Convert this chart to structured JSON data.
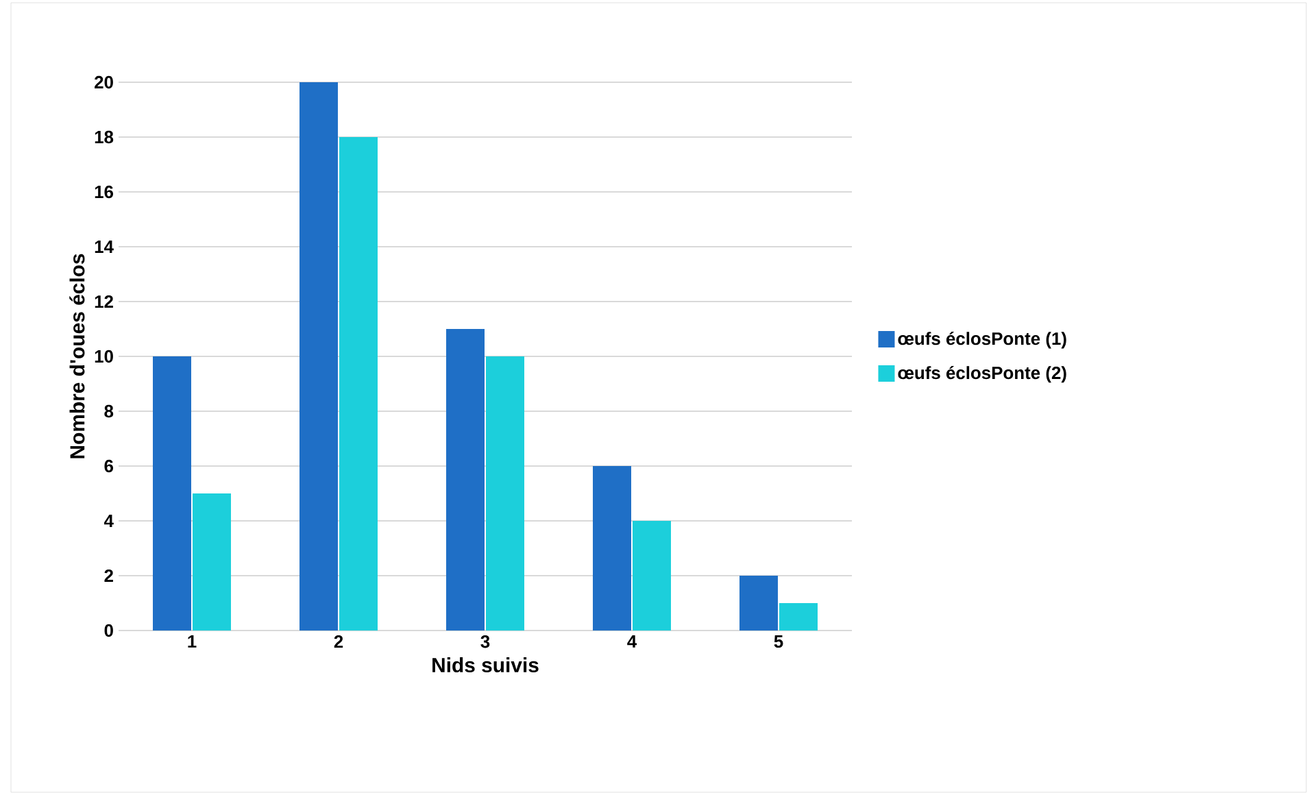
{
  "chart_data": {
    "type": "bar",
    "xlabel": "Nids suivis",
    "ylabel": "Nombre d'oues éclos",
    "categories": [
      "1",
      "2",
      "3",
      "4",
      "5"
    ],
    "series": [
      {
        "name": "œufs éclosPonte (1)",
        "color": "#1f6fc6",
        "values": [
          10,
          20,
          11,
          6,
          2
        ]
      },
      {
        "name": "œufs éclosPonte (2)",
        "color": "#1ccfdb",
        "values": [
          5,
          18,
          10,
          4,
          1
        ]
      }
    ],
    "ylim": [
      0,
      20
    ],
    "yticks": [
      0,
      2,
      4,
      6,
      8,
      10,
      12,
      14,
      16,
      18,
      20
    ],
    "grid": "y",
    "legend": "right"
  }
}
